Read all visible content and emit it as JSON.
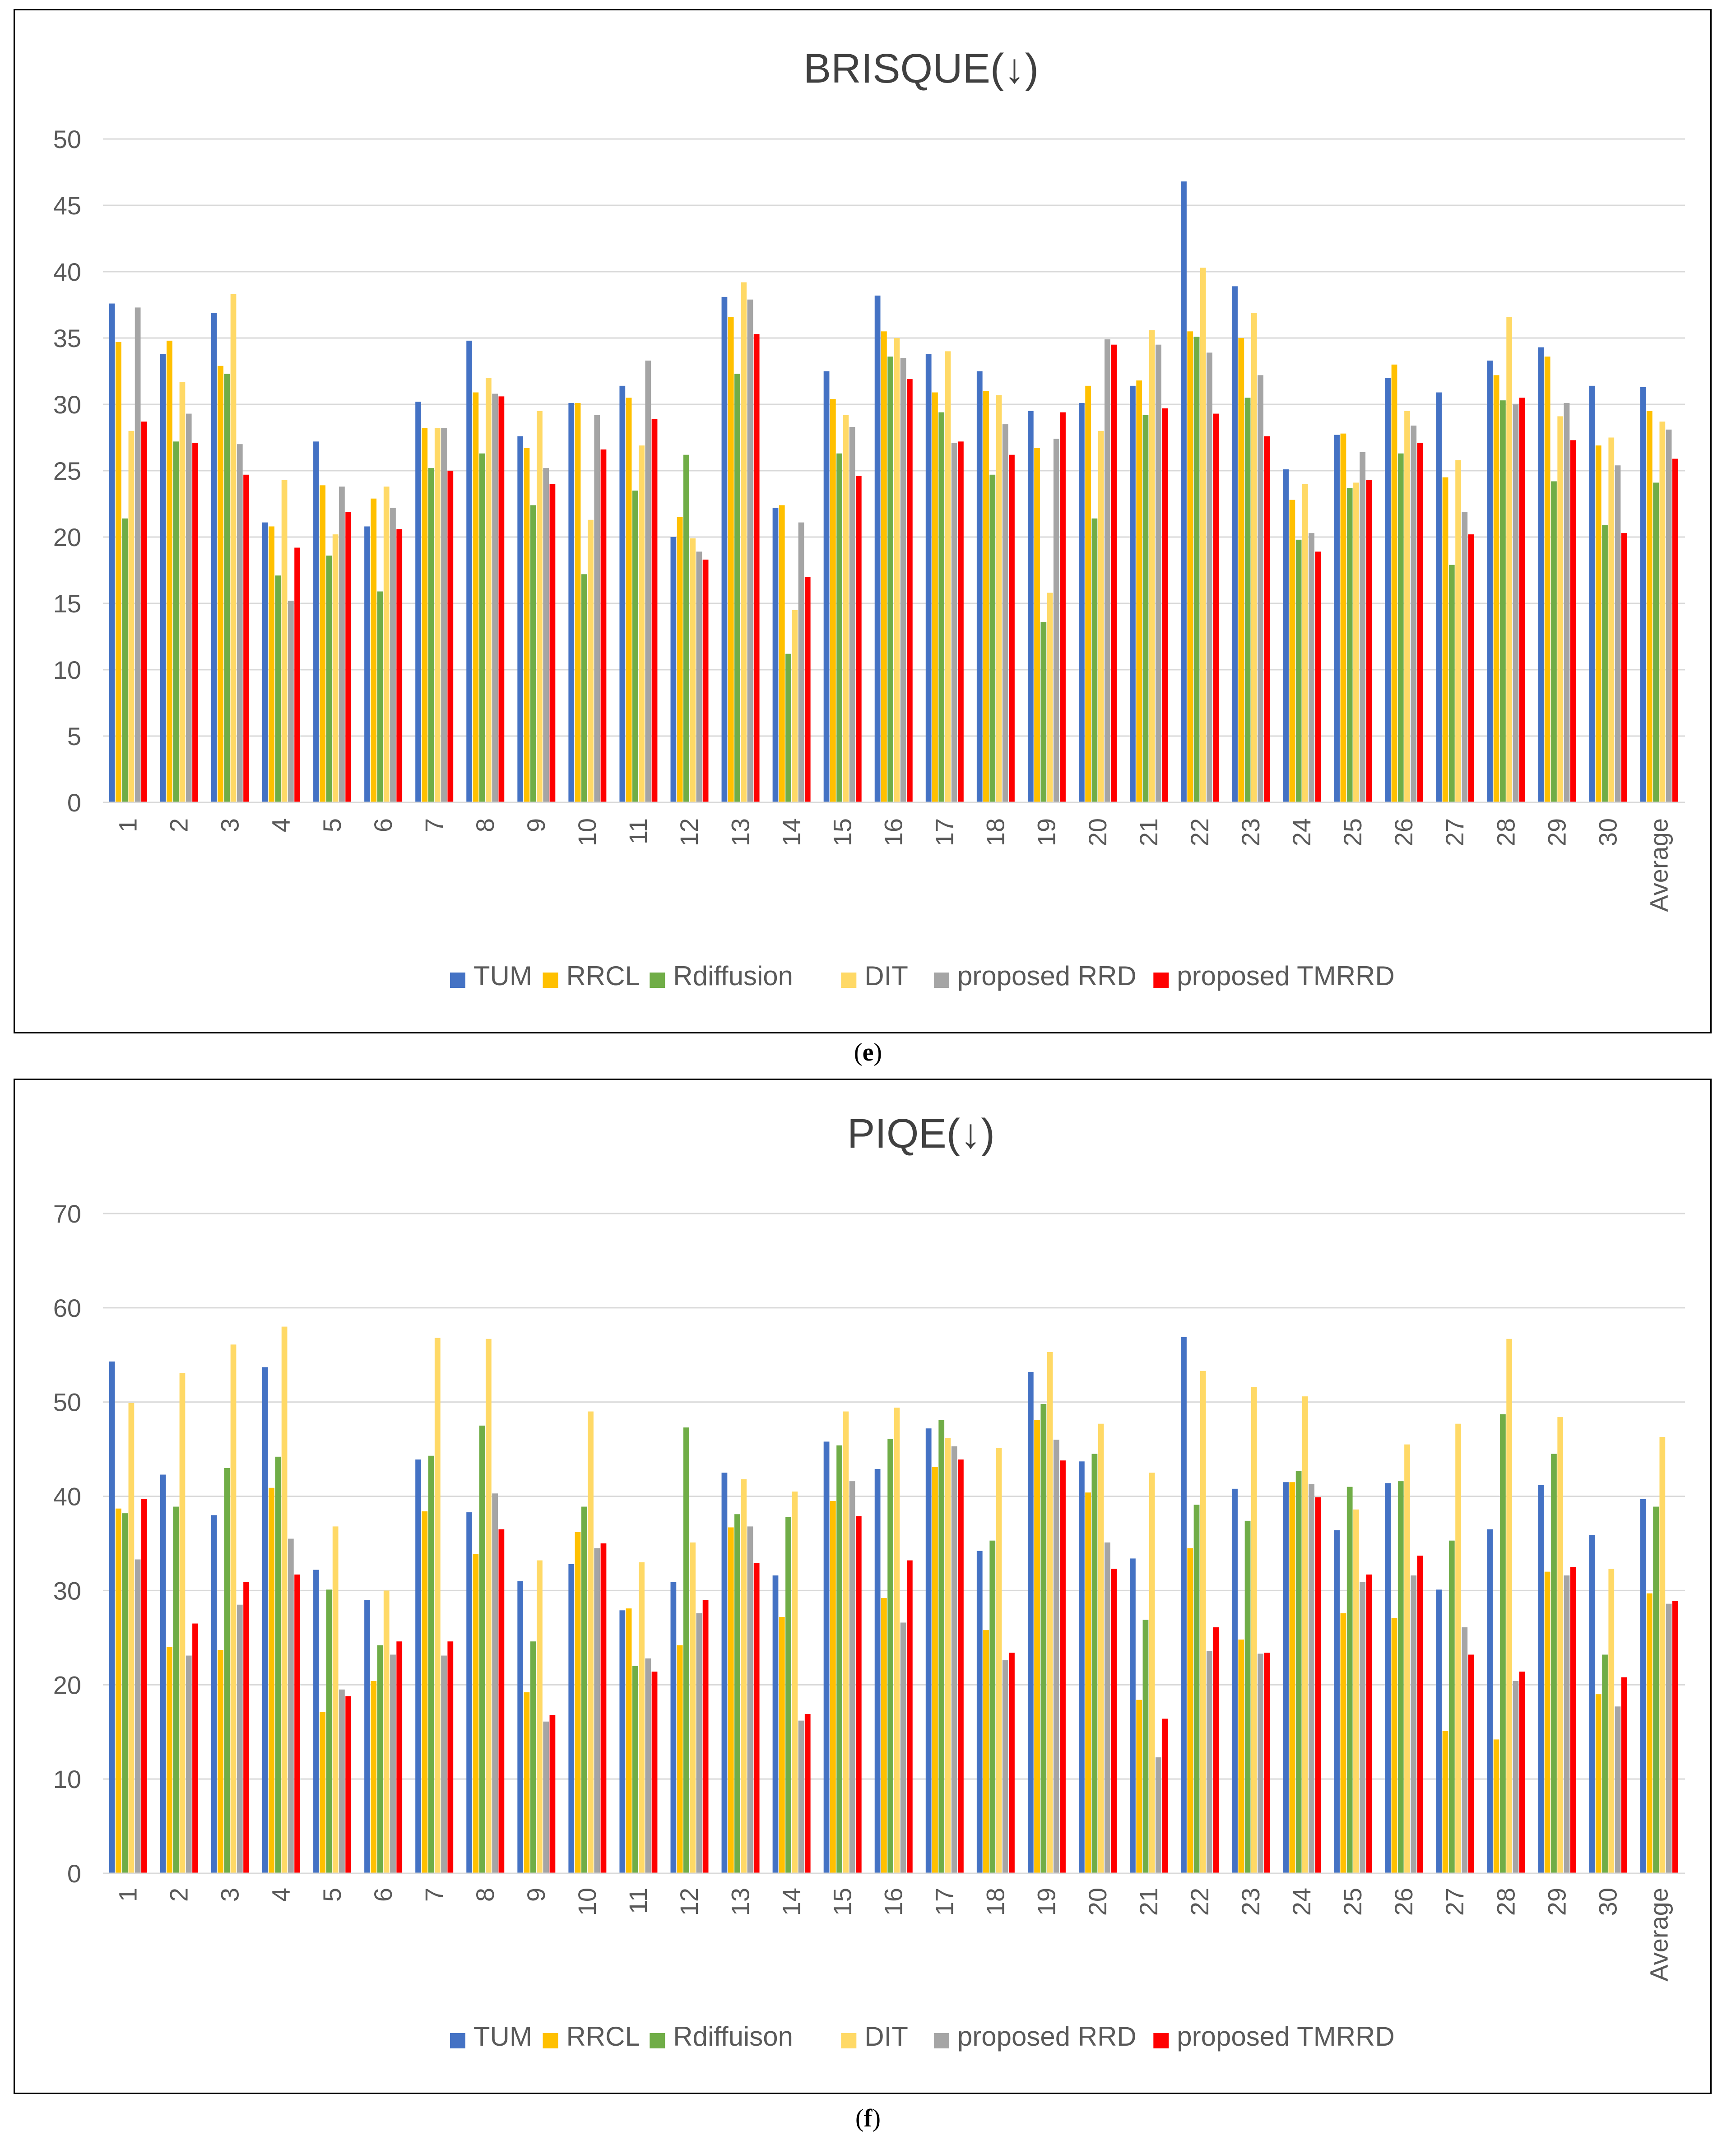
{
  "colors": {
    "TUM": "#4472C4",
    "RRCL": "#FFC000",
    "Rdiffusion": "#70AD47",
    "DIT": "#FFD966",
    "proposed RRD": "#A5A5A5",
    "proposed TMRRD": "#FF0000",
    "grid": "#D9D9D9",
    "axis_text": "#595959"
  },
  "chart_data": [
    {
      "id": "e",
      "type": "bar",
      "title": "BRISQUE(↓)",
      "caption_open": "(",
      "caption_letter": "e",
      "caption_close": ")",
      "xlabel": "",
      "ylabel": "",
      "ylim": [
        0,
        50
      ],
      "yticks": [
        0,
        5,
        10,
        15,
        20,
        25,
        30,
        35,
        40,
        45,
        50
      ],
      "grid": true,
      "legend_position": "bottom",
      "categories": [
        "1",
        "2",
        "3",
        "4",
        "5",
        "6",
        "7",
        "8",
        "9",
        "10",
        "11",
        "12",
        "13",
        "14",
        "15",
        "16",
        "17",
        "18",
        "19",
        "20",
        "21",
        "22",
        "23",
        "24",
        "25",
        "26",
        "27",
        "28",
        "29",
        "30",
        "Average"
      ],
      "series": [
        {
          "name": "TUM",
          "color_key": "TUM",
          "values": [
            37.6,
            33.8,
            36.9,
            21.1,
            27.2,
            20.8,
            30.2,
            34.8,
            27.6,
            30.1,
            31.4,
            20.0,
            38.1,
            22.2,
            32.5,
            38.2,
            33.8,
            32.5,
            29.5,
            30.1,
            31.4,
            46.8,
            38.9,
            25.1,
            27.7,
            32.0,
            30.9,
            33.3,
            34.3,
            31.4,
            31.3
          ]
        },
        {
          "name": "RRCL",
          "color_key": "RRCL",
          "values": [
            34.7,
            34.8,
            32.9,
            20.8,
            23.9,
            22.9,
            28.2,
            30.9,
            26.7,
            30.1,
            30.5,
            21.5,
            36.6,
            22.4,
            30.4,
            35.5,
            30.9,
            31.0,
            26.7,
            31.4,
            31.8,
            35.5,
            35.0,
            22.8,
            27.8,
            33.0,
            24.5,
            32.2,
            33.6,
            26.9,
            29.5
          ]
        },
        {
          "name": "Rdiffusion",
          "color_key": "Rdiffusion",
          "values": [
            21.4,
            27.2,
            32.3,
            17.1,
            18.6,
            15.9,
            25.2,
            26.3,
            22.4,
            17.2,
            23.5,
            26.2,
            32.3,
            11.2,
            26.3,
            33.6,
            29.4,
            24.7,
            13.6,
            21.4,
            29.2,
            35.1,
            30.5,
            19.8,
            23.7,
            26.3,
            17.9,
            30.3,
            24.2,
            20.9,
            24.1
          ]
        },
        {
          "name": "DIT",
          "color_key": "DIT",
          "values": [
            28.0,
            31.7,
            38.3,
            24.3,
            20.2,
            23.8,
            28.2,
            32.0,
            29.5,
            21.3,
            26.9,
            19.9,
            39.2,
            14.5,
            29.2,
            35.0,
            34.0,
            30.7,
            15.8,
            28.0,
            35.6,
            40.3,
            36.9,
            24.0,
            24.1,
            29.5,
            25.8,
            36.6,
            29.1,
            27.5,
            28.7
          ]
        },
        {
          "name": "proposed RRD",
          "color_key": "proposed RRD",
          "values": [
            37.3,
            29.3,
            27.0,
            15.2,
            23.8,
            22.2,
            28.2,
            30.8,
            25.2,
            29.2,
            33.3,
            18.9,
            37.9,
            21.1,
            28.3,
            33.5,
            27.1,
            28.5,
            27.4,
            34.9,
            34.5,
            33.9,
            32.2,
            20.3,
            26.4,
            28.4,
            21.9,
            30.0,
            30.1,
            25.4,
            28.1
          ]
        },
        {
          "name": "proposed TMRRD",
          "color_key": "proposed TMRRD",
          "values": [
            28.7,
            27.1,
            24.7,
            19.2,
            21.9,
            20.6,
            25.0,
            30.6,
            24.0,
            26.6,
            28.9,
            18.3,
            35.3,
            17.0,
            24.6,
            31.9,
            27.2,
            26.2,
            29.4,
            34.5,
            29.7,
            29.3,
            27.6,
            18.9,
            24.3,
            27.1,
            20.2,
            30.5,
            27.3,
            20.3,
            25.9
          ]
        }
      ]
    },
    {
      "id": "f",
      "type": "bar",
      "title": "PIQE(↓)",
      "caption_open": "(",
      "caption_letter": "f",
      "caption_close": ")",
      "xlabel": "",
      "ylabel": "",
      "ylim": [
        0,
        70
      ],
      "yticks": [
        0,
        10,
        20,
        30,
        40,
        50,
        60,
        70
      ],
      "grid": true,
      "legend_position": "bottom",
      "categories": [
        "1",
        "2",
        "3",
        "4",
        "5",
        "6",
        "7",
        "8",
        "9",
        "10",
        "11",
        "12",
        "13",
        "14",
        "15",
        "16",
        "17",
        "18",
        "19",
        "20",
        "21",
        "22",
        "23",
        "24",
        "25",
        "26",
        "27",
        "28",
        "29",
        "30",
        "Average"
      ],
      "series": [
        {
          "name": "TUM",
          "color_key": "TUM",
          "values": [
            54.3,
            42.3,
            38.0,
            53.7,
            32.2,
            29.0,
            43.9,
            38.3,
            31.0,
            32.8,
            27.9,
            30.9,
            42.5,
            31.6,
            45.8,
            42.9,
            47.2,
            34.2,
            53.2,
            43.7,
            33.4,
            56.9,
            40.8,
            41.5,
            36.4,
            41.4,
            30.1,
            36.5,
            41.2,
            35.9,
            39.7
          ]
        },
        {
          "name": "RRCL",
          "color_key": "RRCL",
          "values": [
            38.7,
            24.0,
            23.7,
            40.9,
            17.1,
            20.4,
            38.4,
            33.9,
            19.2,
            36.2,
            28.1,
            24.2,
            36.7,
            27.2,
            39.5,
            29.2,
            43.1,
            25.8,
            48.1,
            40.4,
            18.4,
            34.5,
            24.8,
            41.5,
            27.6,
            27.1,
            15.1,
            14.2,
            32.0,
            19.0,
            29.7
          ]
        },
        {
          "name": "Rdiffuison",
          "color_key": "Rdiffusion",
          "values": [
            38.2,
            38.9,
            43.0,
            44.2,
            30.1,
            24.2,
            44.3,
            47.5,
            24.6,
            38.9,
            22.0,
            47.3,
            38.1,
            37.8,
            45.4,
            46.1,
            48.1,
            35.3,
            49.8,
            44.5,
            26.9,
            39.1,
            37.4,
            42.7,
            41.0,
            41.6,
            35.3,
            48.7,
            44.5,
            23.2,
            38.9
          ]
        },
        {
          "name": "DIT",
          "color_key": "DIT",
          "values": [
            49.9,
            53.1,
            56.1,
            58.0,
            36.8,
            30.0,
            56.8,
            56.7,
            33.2,
            49.0,
            33.0,
            35.1,
            41.8,
            40.5,
            49.0,
            49.4,
            46.2,
            45.1,
            55.3,
            47.7,
            42.5,
            53.3,
            51.6,
            50.6,
            38.6,
            45.5,
            47.7,
            56.7,
            48.4,
            32.3,
            46.3
          ]
        },
        {
          "name": "proposed RRD",
          "color_key": "proposed RRD",
          "values": [
            33.3,
            23.1,
            28.5,
            35.5,
            19.5,
            23.2,
            23.1,
            40.3,
            16.1,
            34.5,
            22.8,
            27.6,
            36.8,
            16.2,
            41.6,
            26.6,
            45.3,
            22.6,
            46.0,
            35.1,
            12.3,
            23.6,
            23.3,
            41.3,
            30.9,
            31.6,
            26.1,
            20.4,
            31.6,
            17.7,
            28.6
          ]
        },
        {
          "name": "proposed TMRRD",
          "color_key": "proposed TMRRD",
          "values": [
            39.7,
            26.5,
            30.9,
            31.7,
            18.8,
            24.6,
            24.6,
            36.5,
            16.8,
            35.0,
            21.4,
            29.0,
            32.9,
            16.9,
            37.9,
            33.2,
            43.9,
            23.4,
            43.8,
            32.3,
            16.4,
            26.1,
            23.4,
            39.9,
            31.7,
            33.7,
            23.2,
            21.4,
            32.5,
            20.8,
            28.9
          ]
        }
      ]
    }
  ]
}
